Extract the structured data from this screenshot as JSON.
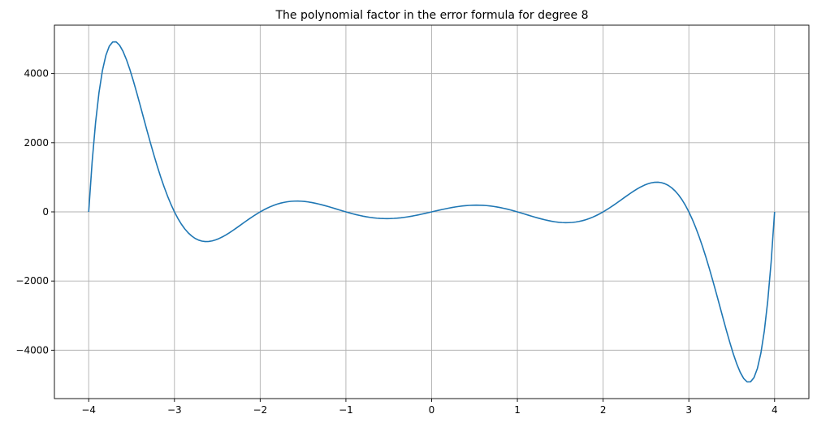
{
  "chart_data": {
    "type": "line",
    "title": "The polynomial factor in the error formula for degree 8",
    "xlabel": "",
    "ylabel": "",
    "xlim": [
      -4.4,
      4.4
    ],
    "ylim": [
      -5400,
      5400
    ],
    "xticks": [
      -4,
      -3,
      -2,
      -1,
      0,
      1,
      2,
      3,
      4
    ],
    "xtick_labels": [
      "−4",
      "−3",
      "−2",
      "−1",
      "0",
      "1",
      "2",
      "3",
      "4"
    ],
    "yticks": [
      -4000,
      -2000,
      0,
      2000,
      4000
    ],
    "ytick_labels": [
      "−4000",
      "−2000",
      "0",
      "2000",
      "4000"
    ],
    "grid": true,
    "legend": "none",
    "series": [
      {
        "color": "#1f77b4",
        "nodes": [
          -4,
          -3,
          -2,
          -1,
          0,
          1,
          2,
          3,
          4
        ],
        "x_range": [
          -4,
          4
        ],
        "samples": 201
      }
    ]
  },
  "colors": {
    "line": "#1f77b4",
    "grid": "#b0b0b0",
    "axes": "#000000",
    "background": "#ffffff"
  }
}
